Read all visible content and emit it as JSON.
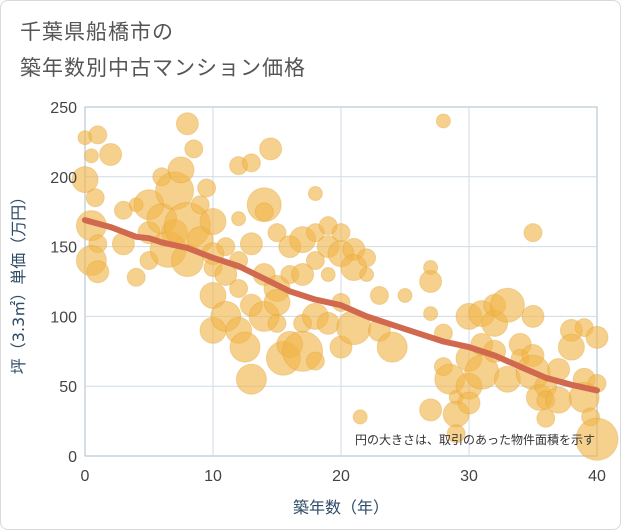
{
  "title_line1": "千葉県船橋市の",
  "title_line2": "築年数別中古マンション価格",
  "chart_data": {
    "type": "scatter",
    "title": "千葉県船橋市の 築年数別中古マンション価格",
    "xlabel": "築年数（年）",
    "ylabel": "坪（3.3㎡）単価（万円）",
    "xlim": [
      0,
      40
    ],
    "ylim": [
      0,
      250
    ],
    "xticks": [
      0,
      10,
      20,
      30,
      40
    ],
    "yticks": [
      0,
      50,
      100,
      150,
      200,
      250
    ],
    "grid": true,
    "note": "円の大きさは、取引のあった物件面積を示す",
    "colors": {
      "bubble": "#f0b549",
      "bubble_edge": "#e0a030",
      "trend": "#d0694e",
      "grid": "#cfdbe5",
      "plot_border": "#a9bccb"
    },
    "series": [
      {
        "name": "取引物件",
        "kind": "bubble",
        "points": [
          [
            0,
            228,
            7
          ],
          [
            1,
            230,
            9
          ],
          [
            0.5,
            215,
            7
          ],
          [
            2,
            216,
            11
          ],
          [
            0,
            198,
            13
          ],
          [
            0.8,
            185,
            9
          ],
          [
            0.5,
            165,
            15
          ],
          [
            1,
            152,
            9
          ],
          [
            0.5,
            140,
            15
          ],
          [
            1,
            132,
            11
          ],
          [
            3,
            176,
            9
          ],
          [
            3,
            152,
            11
          ],
          [
            4,
            180,
            7
          ],
          [
            4,
            128,
            9
          ],
          [
            5,
            180,
            15
          ],
          [
            5,
            160,
            11
          ],
          [
            5,
            140,
            9
          ],
          [
            6,
            200,
            9
          ],
          [
            6,
            170,
            15
          ],
          [
            6.5,
            148,
            18
          ],
          [
            7,
            190,
            19
          ],
          [
            7,
            160,
            13
          ],
          [
            7.5,
            205,
            13
          ],
          [
            8,
            238,
            11
          ],
          [
            8,
            165,
            23
          ],
          [
            8,
            140,
            16
          ],
          [
            8.5,
            220,
            9
          ],
          [
            9,
            180,
            9
          ],
          [
            9.5,
            192,
            9
          ],
          [
            9,
            155,
            13
          ],
          [
            10,
            168,
            13
          ],
          [
            10,
            145,
            11
          ],
          [
            10,
            135,
            9
          ],
          [
            10,
            115,
            13
          ],
          [
            10,
            90,
            13
          ],
          [
            11,
            150,
            9
          ],
          [
            11,
            130,
            11
          ],
          [
            11,
            100,
            15
          ],
          [
            12,
            208,
            9
          ],
          [
            12,
            170,
            7
          ],
          [
            12,
            140,
            9
          ],
          [
            12,
            120,
            9
          ],
          [
            12,
            90,
            13
          ],
          [
            12.5,
            78,
            15
          ],
          [
            13,
            210,
            9
          ],
          [
            13,
            152,
            11
          ],
          [
            13,
            108,
            11
          ],
          [
            13,
            55,
            15
          ],
          [
            14,
            180,
            17
          ],
          [
            14,
            175,
            9
          ],
          [
            14,
            130,
            11
          ],
          [
            14,
            100,
            15
          ],
          [
            14.5,
            220,
            11
          ],
          [
            15,
            160,
            9
          ],
          [
            15,
            120,
            13
          ],
          [
            15,
            110,
            13
          ],
          [
            15,
            95,
            9
          ],
          [
            15.5,
            70,
            17
          ],
          [
            16,
            150,
            11
          ],
          [
            16,
            130,
            9
          ],
          [
            16,
            80,
            13
          ],
          [
            17,
            155,
            13
          ],
          [
            17,
            130,
            11
          ],
          [
            17,
            95,
            9
          ],
          [
            17,
            75,
            20
          ],
          [
            18,
            188,
            7
          ],
          [
            18,
            160,
            9
          ],
          [
            18,
            140,
            9
          ],
          [
            18,
            100,
            13
          ],
          [
            18,
            68,
            9
          ],
          [
            19,
            165,
            9
          ],
          [
            19,
            150,
            11
          ],
          [
            19,
            130,
            7
          ],
          [
            19,
            95,
            11
          ],
          [
            20,
            160,
            9
          ],
          [
            20,
            145,
            13
          ],
          [
            20,
            110,
            9
          ],
          [
            20,
            78,
            11
          ],
          [
            21,
            148,
            11
          ],
          [
            21,
            135,
            13
          ],
          [
            21,
            92,
            17
          ],
          [
            21.5,
            28,
            7
          ],
          [
            22,
            142,
            9
          ],
          [
            22,
            130,
            7
          ],
          [
            23,
            115,
            9
          ],
          [
            23,
            90,
            11
          ],
          [
            24,
            78,
            15
          ],
          [
            25,
            115,
            7
          ],
          [
            27,
            135,
            7
          ],
          [
            27,
            125,
            11
          ],
          [
            27,
            102,
            7
          ],
          [
            27,
            33,
            11
          ],
          [
            28,
            240,
            7
          ],
          [
            28,
            88,
            9
          ],
          [
            28,
            64,
            9
          ],
          [
            28.5,
            55,
            15
          ],
          [
            29,
            42,
            7
          ],
          [
            29,
            30,
            13
          ],
          [
            29,
            16,
            9
          ],
          [
            30,
            100,
            13
          ],
          [
            30,
            70,
            13
          ],
          [
            30,
            50,
            13
          ],
          [
            30,
            38,
            11
          ],
          [
            31,
            102,
            13
          ],
          [
            31,
            80,
            11
          ],
          [
            31,
            60,
            17
          ],
          [
            32,
            108,
            11
          ],
          [
            32,
            95,
            13
          ],
          [
            32,
            75,
            11
          ],
          [
            33,
            108,
            17
          ],
          [
            33,
            55,
            13
          ],
          [
            34,
            80,
            11
          ],
          [
            34,
            70,
            9
          ],
          [
            35,
            160,
            9
          ],
          [
            35,
            100,
            11
          ],
          [
            35,
            72,
            11
          ],
          [
            35,
            60,
            17
          ],
          [
            35.5,
            42,
            13
          ],
          [
            36,
            50,
            11
          ],
          [
            36,
            40,
            9
          ],
          [
            36,
            27,
            9
          ],
          [
            37,
            62,
            11
          ],
          [
            37,
            40,
            13
          ],
          [
            38,
            90,
            11
          ],
          [
            38,
            78,
            13
          ],
          [
            39,
            92,
            9
          ],
          [
            39,
            55,
            11
          ],
          [
            39,
            42,
            15
          ],
          [
            39.5,
            28,
            9
          ],
          [
            40,
            85,
            11
          ],
          [
            40,
            12,
            21
          ],
          [
            40,
            52,
            9
          ]
        ]
      },
      {
        "name": "傾向線",
        "kind": "line",
        "x": [
          0,
          2,
          4,
          5,
          6,
          8,
          10,
          12,
          14,
          16,
          18,
          20,
          22,
          24,
          26,
          28,
          30,
          32,
          34,
          36,
          38,
          40
        ],
        "y": [
          169,
          164,
          157,
          156,
          153,
          149,
          142,
          136,
          127,
          118,
          112,
          108,
          100,
          94,
          88,
          82,
          78,
          72,
          64,
          56,
          51,
          47
        ]
      }
    ]
  }
}
